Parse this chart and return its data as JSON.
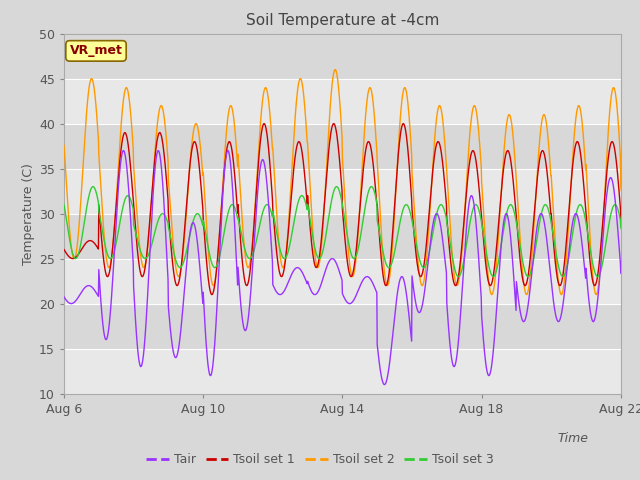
{
  "title": "Soil Temperature at -4cm",
  "xlabel": "Time",
  "ylabel": "Temperature (C)",
  "ylim": [
    10,
    50
  ],
  "n_days": 17,
  "dt_hours": 0.25,
  "x_ticks_labels": [
    "Aug 6",
    "Aug 10",
    "Aug 14",
    "Aug 18",
    "Aug 22"
  ],
  "x_ticks_days": [
    0,
    4,
    8,
    12,
    16
  ],
  "yticks": [
    10,
    15,
    20,
    25,
    30,
    35,
    40,
    45,
    50
  ],
  "outer_bg": "#d8d8d8",
  "plot_bg_light": "#e8e8e8",
  "plot_bg_dark": "#d0d0d0",
  "legend_labels": [
    "Tair",
    "Tsoil set 1",
    "Tsoil set 2",
    "Tsoil set 3"
  ],
  "line_colors": [
    "#9933ff",
    "#cc0000",
    "#ff9900",
    "#33cc33"
  ],
  "annotation_text": "VR_met",
  "annotation_bg": "#ffff99",
  "annotation_border": "#886600",
  "annotation_text_color": "#880000",
  "title_color": "#444444",
  "axis_label_color": "#555555",
  "tick_color": "#555555",
  "tair_mins": [
    20,
    16,
    13,
    14,
    12,
    17,
    21,
    21,
    20,
    11,
    19,
    13,
    12,
    18,
    18,
    18,
    23
  ],
  "tair_maxs": [
    22,
    37,
    37,
    29,
    37,
    36,
    24,
    25,
    23,
    23,
    30,
    32,
    30,
    30,
    30,
    34,
    24
  ],
  "tsoil1_mins": [
    25,
    23,
    23,
    22,
    21,
    22,
    23,
    24,
    23,
    22,
    23,
    22,
    22,
    22,
    22,
    22,
    23
  ],
  "tsoil1_maxs": [
    27,
    39,
    39,
    38,
    38,
    40,
    38,
    40,
    38,
    40,
    38,
    37,
    37,
    37,
    38,
    38,
    36
  ],
  "tsoil2_mins": [
    25,
    24,
    24,
    23,
    22,
    24,
    24,
    24,
    23,
    22,
    22,
    22,
    21,
    21,
    21,
    21,
    23
  ],
  "tsoil2_maxs": [
    45,
    44,
    42,
    40,
    42,
    44,
    45,
    46,
    44,
    44,
    42,
    42,
    41,
    41,
    42,
    44,
    39
  ],
  "tsoil3_mins": [
    25,
    25,
    25,
    24,
    24,
    25,
    25,
    25,
    25,
    24,
    24,
    23,
    23,
    23,
    23,
    23,
    24
  ],
  "tsoil3_maxs": [
    33,
    32,
    30,
    30,
    31,
    31,
    32,
    33,
    33,
    31,
    31,
    31,
    31,
    31,
    31,
    31,
    30
  ]
}
